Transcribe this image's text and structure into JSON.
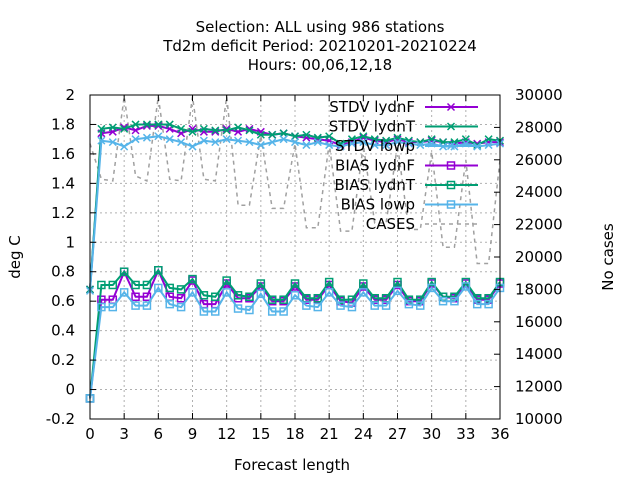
{
  "title": {
    "line1": "Selection: ALL using   986 stations",
    "line2": "Td2m deficit   Period: 20210201-20210224",
    "line3": "Hours:  00,06,12,18"
  },
  "chart_data": {
    "type": "line",
    "xlabel": "Forecast length",
    "ylabel": "deg C",
    "y2label": "No cases",
    "xlim": [
      0,
      36
    ],
    "ylim": [
      -0.2,
      2.0
    ],
    "y2lim": [
      10000,
      30000
    ],
    "grid": true,
    "legend_position": "top-right",
    "xticks": [
      "0",
      "3",
      "6",
      "9",
      "12",
      "15",
      "18",
      "21",
      "24",
      "27",
      "30",
      "33",
      "36"
    ],
    "yticks": [
      "-0.2",
      "0",
      "0.2",
      "0.4",
      "0.6",
      "0.8",
      "1",
      "1.2",
      "1.4",
      "1.6",
      "1.8",
      "2"
    ],
    "y2ticks": [
      "10000",
      "12000",
      "14000",
      "16000",
      "18000",
      "20000",
      "22000",
      "24000",
      "26000",
      "28000",
      "30000"
    ],
    "x": [
      0,
      1,
      2,
      3,
      4,
      5,
      6,
      7,
      8,
      9,
      10,
      11,
      12,
      13,
      14,
      15,
      16,
      17,
      18,
      19,
      20,
      21,
      22,
      23,
      24,
      25,
      26,
      27,
      28,
      29,
      30,
      31,
      32,
      33,
      34,
      35,
      36
    ],
    "series": [
      {
        "name": "STDV lydnF",
        "axis": "y1",
        "color": "#9400d3",
        "marker": "x",
        "values": [
          0.68,
          1.74,
          1.75,
          1.78,
          1.76,
          1.79,
          1.79,
          1.77,
          1.74,
          1.77,
          1.75,
          1.75,
          1.77,
          1.75,
          1.77,
          1.75,
          1.73,
          1.74,
          1.72,
          1.71,
          1.7,
          1.69,
          1.66,
          1.68,
          1.71,
          1.69,
          1.68,
          1.7,
          1.68,
          1.68,
          1.69,
          1.68,
          1.67,
          1.68,
          1.67,
          1.68,
          1.68
        ]
      },
      {
        "name": "STDV lydnT",
        "axis": "y1",
        "color": "#009e73",
        "marker": "x",
        "values": [
          0.68,
          1.77,
          1.78,
          1.77,
          1.8,
          1.8,
          1.8,
          1.8,
          1.77,
          1.75,
          1.77,
          1.76,
          1.76,
          1.78,
          1.76,
          1.73,
          1.73,
          1.74,
          1.72,
          1.73,
          1.71,
          1.72,
          1.67,
          1.7,
          1.72,
          1.7,
          1.69,
          1.71,
          1.69,
          1.68,
          1.7,
          1.68,
          1.68,
          1.7,
          1.66,
          1.7,
          1.69
        ]
      },
      {
        "name": "STDV lowp",
        "axis": "y1",
        "color": "#56b4e9",
        "marker": "x",
        "values": [
          0.67,
          1.69,
          1.68,
          1.65,
          1.7,
          1.71,
          1.72,
          1.7,
          1.68,
          1.65,
          1.69,
          1.68,
          1.7,
          1.69,
          1.68,
          1.66,
          1.68,
          1.7,
          1.68,
          1.66,
          1.68,
          1.66,
          1.65,
          1.67,
          1.68,
          1.66,
          1.66,
          1.68,
          1.67,
          1.66,
          1.67,
          1.65,
          1.65,
          1.67,
          1.65,
          1.66,
          1.67
        ]
      },
      {
        "name": "BIAS lydnF",
        "axis": "y1",
        "color": "#9400d3",
        "marker": "square",
        "values": [
          -0.06,
          0.61,
          0.61,
          0.8,
          0.63,
          0.63,
          0.81,
          0.63,
          0.62,
          0.74,
          0.58,
          0.58,
          0.72,
          0.62,
          0.62,
          0.7,
          0.6,
          0.6,
          0.7,
          0.61,
          0.61,
          0.71,
          0.6,
          0.59,
          0.7,
          0.61,
          0.61,
          0.71,
          0.6,
          0.6,
          0.72,
          0.63,
          0.62,
          0.72,
          0.61,
          0.61,
          0.72
        ]
      },
      {
        "name": "BIAS lydnT",
        "axis": "y1",
        "color": "#009e73",
        "marker": "square",
        "values": [
          -0.06,
          0.71,
          0.71,
          0.8,
          0.71,
          0.71,
          0.81,
          0.69,
          0.68,
          0.75,
          0.64,
          0.63,
          0.74,
          0.64,
          0.63,
          0.72,
          0.61,
          0.61,
          0.72,
          0.62,
          0.62,
          0.73,
          0.61,
          0.61,
          0.72,
          0.62,
          0.62,
          0.73,
          0.61,
          0.61,
          0.73,
          0.63,
          0.63,
          0.73,
          0.62,
          0.62,
          0.73
        ]
      },
      {
        "name": "BIAS lowp",
        "axis": "y1",
        "color": "#56b4e9",
        "marker": "square",
        "values": [
          -0.06,
          0.56,
          0.56,
          0.66,
          0.57,
          0.57,
          0.69,
          0.58,
          0.56,
          0.66,
          0.53,
          0.53,
          0.66,
          0.55,
          0.54,
          0.65,
          0.53,
          0.53,
          0.64,
          0.57,
          0.56,
          0.66,
          0.57,
          0.56,
          0.66,
          0.57,
          0.57,
          0.67,
          0.58,
          0.57,
          0.69,
          0.6,
          0.6,
          0.7,
          0.58,
          0.58,
          0.69
        ]
      },
      {
        "name": "CASES",
        "axis": "y2",
        "color": "#a0a0a0",
        "dashed": true,
        "marker": "none",
        "values": [
          27000,
          24800,
          24700,
          29900,
          25000,
          24700,
          29900,
          24800,
          24700,
          29900,
          24800,
          24700,
          29900,
          23200,
          23200,
          27500,
          23000,
          23000,
          27000,
          21800,
          21800,
          27000,
          21600,
          21600,
          26900,
          22100,
          22100,
          26900,
          21700,
          21700,
          26500,
          20600,
          20600,
          26000,
          19600,
          19600,
          26000
        ]
      }
    ]
  }
}
